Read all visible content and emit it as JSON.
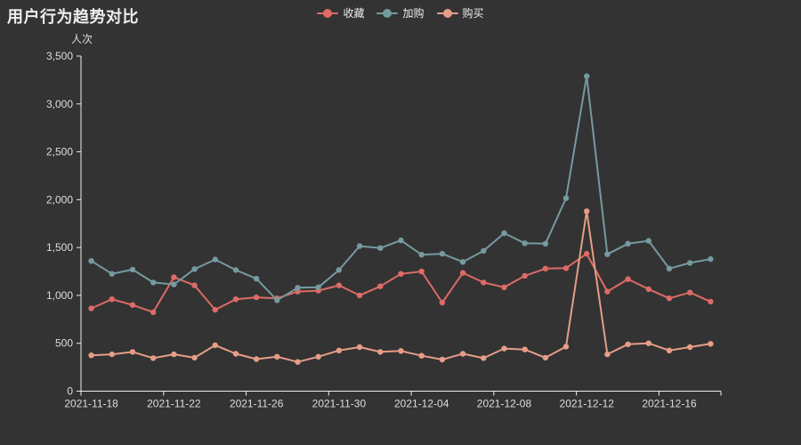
{
  "header": {
    "title": "用户行为趋势对比"
  },
  "chart_data": {
    "type": "line",
    "title": "用户行为趋势对比",
    "y_name": "人次",
    "theme": "dark",
    "background_color": "#333333",
    "text_color": "#eeeeee",
    "axis_color": "#eeeeee",
    "grid_lines": false,
    "legend_position": "top-center",
    "ylim": [
      0,
      3500
    ],
    "y_ticks": [
      0,
      500,
      1000,
      1500,
      2000,
      2500,
      3000,
      3500
    ],
    "categories": [
      "2021-11-18",
      "2021-11-19",
      "2021-11-20",
      "2021-11-21",
      "2021-11-22",
      "2021-11-23",
      "2021-11-24",
      "2021-11-25",
      "2021-11-26",
      "2021-11-27",
      "2021-11-28",
      "2021-11-29",
      "2021-11-30",
      "2021-12-01",
      "2021-12-02",
      "2021-12-03",
      "2021-12-04",
      "2021-12-05",
      "2021-12-06",
      "2021-12-07",
      "2021-12-08",
      "2021-12-09",
      "2021-12-10",
      "2021-12-11",
      "2021-12-12",
      "2021-12-13",
      "2021-12-14",
      "2021-12-15",
      "2021-12-16",
      "2021-12-17",
      "2021-12-18"
    ],
    "x_label_indices": [
      0,
      4,
      8,
      12,
      16,
      20,
      24,
      28
    ],
    "series": [
      {
        "name": "收藏",
        "color": "#dd6b66",
        "values": [
          865,
          960,
          900,
          825,
          1190,
          1105,
          850,
          960,
          980,
          970,
          1040,
          1050,
          1105,
          1000,
          1095,
          1225,
          1250,
          925,
          1235,
          1135,
          1085,
          1205,
          1280,
          1285,
          1435,
          1040,
          1170,
          1065,
          970,
          1030,
          935
        ]
      },
      {
        "name": "加购",
        "color": "#759aa0",
        "values": [
          1360,
          1225,
          1270,
          1135,
          1115,
          1275,
          1375,
          1265,
          1175,
          950,
          1080,
          1085,
          1265,
          1515,
          1495,
          1575,
          1425,
          1435,
          1350,
          1465,
          1650,
          1545,
          1540,
          2015,
          3290,
          1430,
          1540,
          1570,
          1280,
          1340,
          1380
        ]
      },
      {
        "name": "购买",
        "color": "#e69d87",
        "values": [
          375,
          385,
          410,
          345,
          385,
          350,
          480,
          390,
          335,
          360,
          305,
          360,
          425,
          460,
          410,
          420,
          370,
          330,
          390,
          345,
          445,
          435,
          350,
          465,
          1880,
          385,
          490,
          500,
          425,
          460,
          495
        ]
      }
    ]
  }
}
